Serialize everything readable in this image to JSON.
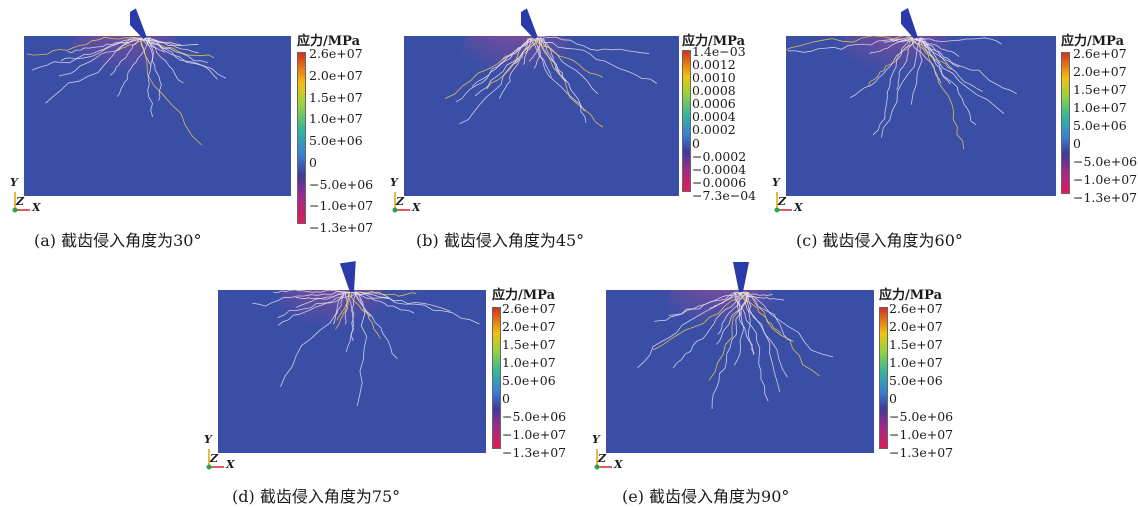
{
  "legend_title": "应力/MPa",
  "axes": {
    "y": "Y",
    "z": "Z",
    "x": "X"
  },
  "panels": [
    {
      "caption": "(a) 截齿侵入角度为30°",
      "ticks": [
        "2.6e+07",
        "2.0e+07",
        "1.5e+07",
        "1.0e+07",
        "5.0e+06",
        "0",
        "−5.0e+06",
        "−1.0e+07",
        "−1.3e+07"
      ]
    },
    {
      "caption": "(b) 截齿侵入角度为45°",
      "ticks": [
        "1.4e−03",
        "0.0012",
        "0.0010",
        "0.0008",
        "0.0006",
        "0.0004",
        "0.0002",
        "0",
        "−0.0002",
        "−0.0004",
        "−0.0006",
        "−7.3e−04"
      ]
    },
    {
      "caption": "(c) 截齿侵入角度为60°",
      "ticks": [
        "2.6e+07",
        "2.0e+07",
        "1.5e+07",
        "1.0e+07",
        "5.0e+06",
        "0",
        "−5.0e+06",
        "−1.0e+07",
        "−1.3e+07"
      ]
    },
    {
      "caption": "(d) 截齿侵入角度为75°",
      "ticks": [
        "2.6e+07",
        "2.0e+07",
        "1.5e+07",
        "1.0e+07",
        "5.0e+06",
        "0",
        "−5.0e+06",
        "−1.0e+07",
        "−1.3e+07"
      ]
    },
    {
      "caption": "(e) 截齿侵入角度为90°",
      "ticks": [
        "2.6e+07",
        "2.0e+07",
        "1.5e+07",
        "1.0e+07",
        "5.0e+06",
        "0",
        "−5.0e+06",
        "−1.0e+07",
        "−1.3e+07"
      ]
    }
  ],
  "colors": {
    "background": "#3b4ea6",
    "crack": "#e8e4f4",
    "cutter": "#2a3aa8"
  }
}
